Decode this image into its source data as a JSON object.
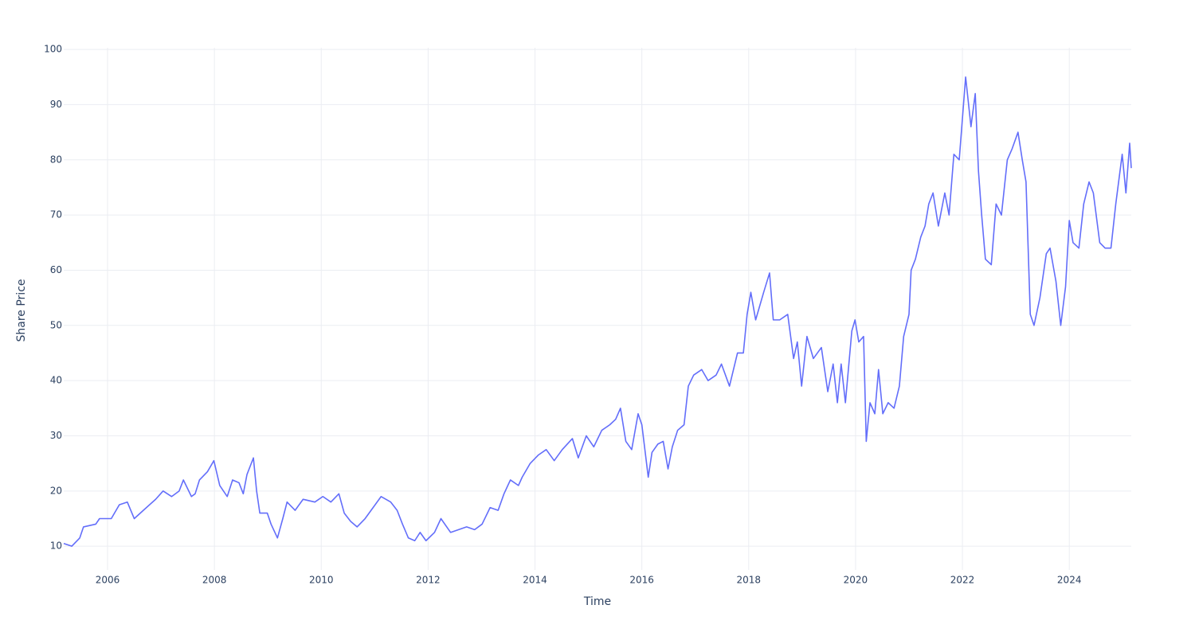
{
  "chart_data": {
    "type": "line",
    "x_label": "Time",
    "y_label": "Share Price",
    "xlim": [
      2005.18,
      2025.16
    ],
    "xticks": [
      2006,
      2008,
      2010,
      2012,
      2014,
      2016,
      2018,
      2020,
      2022,
      2024
    ],
    "ylim": [
      5.7,
      100.3
    ],
    "yticks": [
      10,
      20,
      30,
      40,
      50,
      60,
      70,
      80,
      90,
      100
    ],
    "grid": true,
    "series": [
      {
        "color": "#636efa",
        "x": [
          2005.18,
          2005.33,
          2005.48,
          2005.55,
          2005.78,
          2005.85,
          2006.07,
          2006.22,
          2006.37,
          2006.5,
          2006.67,
          2006.9,
          2007.04,
          2007.2,
          2007.34,
          2007.42,
          2007.57,
          2007.64,
          2007.72,
          2007.87,
          2007.99,
          2008.1,
          2008.24,
          2008.34,
          2008.46,
          2008.54,
          2008.61,
          2008.73,
          2008.79,
          2008.85,
          2008.99,
          2009.06,
          2009.18,
          2009.28,
          2009.36,
          2009.51,
          2009.66,
          2009.88,
          2010.03,
          2010.18,
          2010.33,
          2010.43,
          2010.55,
          2010.67,
          2010.82,
          2010.97,
          2011.12,
          2011.3,
          2011.42,
          2011.52,
          2011.63,
          2011.75,
          2011.85,
          2011.96,
          2012.12,
          2012.24,
          2012.42,
          2012.57,
          2012.72,
          2012.87,
          2013.01,
          2013.16,
          2013.31,
          2013.42,
          2013.54,
          2013.69,
          2013.76,
          2013.91,
          2014.06,
          2014.21,
          2014.36,
          2014.51,
          2014.7,
          2014.81,
          2014.96,
          2015.1,
          2015.25,
          2015.4,
          2015.51,
          2015.6,
          2015.7,
          2015.81,
          2015.93,
          2016.0,
          2016.12,
          2016.19,
          2016.3,
          2016.4,
          2016.49,
          2016.57,
          2016.67,
          2016.79,
          2016.87,
          2016.97,
          2017.12,
          2017.24,
          2017.39,
          2017.49,
          2017.64,
          2017.79,
          2017.9,
          2017.97,
          2018.04,
          2018.13,
          2018.28,
          2018.39,
          2018.46,
          2018.58,
          2018.73,
          2018.84,
          2018.91,
          2018.99,
          2019.09,
          2019.21,
          2019.36,
          2019.48,
          2019.58,
          2019.66,
          2019.73,
          2019.81,
          2019.93,
          2019.99,
          2020.06,
          2020.15,
          2020.2,
          2020.27,
          2020.36,
          2020.43,
          2020.51,
          2020.61,
          2020.72,
          2020.82,
          2020.9,
          2021.0,
          2021.04,
          2021.12,
          2021.22,
          2021.3,
          2021.37,
          2021.45,
          2021.55,
          2021.67,
          2021.75,
          2021.84,
          2021.94,
          2022.06,
          2022.16,
          2022.24,
          2022.3,
          2022.36,
          2022.43,
          2022.54,
          2022.63,
          2022.73,
          2022.84,
          2022.93,
          2023.04,
          2023.12,
          2023.19,
          2023.27,
          2023.34,
          2023.45,
          2023.57,
          2023.64,
          2023.75,
          2023.84,
          2023.93,
          2024.0,
          2024.07,
          2024.18,
          2024.27,
          2024.37,
          2024.45,
          2024.57,
          2024.67,
          2024.78,
          2024.87,
          2024.99,
          2025.06,
          2025.13,
          2025.16
        ],
        "values": [
          10.5,
          10,
          11.5,
          13.5,
          14,
          15,
          15,
          17.5,
          18,
          15,
          16.5,
          18.5,
          20,
          19,
          20,
          22,
          19,
          19.5,
          22,
          23.5,
          25.5,
          21,
          19,
          22,
          21.5,
          19.5,
          23,
          26,
          20,
          16,
          16,
          14,
          11.5,
          15,
          18,
          16.5,
          18.5,
          18,
          19,
          18,
          19.5,
          16,
          14.5,
          13.5,
          15,
          17,
          19,
          18,
          16.5,
          14,
          11.5,
          11,
          12.5,
          11,
          12.5,
          15,
          12.5,
          13,
          13.5,
          13,
          14,
          17,
          16.5,
          19.5,
          22,
          21,
          22.5,
          25,
          26.5,
          27.5,
          25.5,
          27.5,
          29.5,
          26,
          30,
          28,
          31,
          32,
          33,
          35,
          29,
          27.5,
          34,
          32,
          22.5,
          27,
          28.5,
          29,
          24,
          28,
          31,
          32,
          39,
          41,
          42,
          40,
          41,
          43,
          39,
          45,
          45,
          52,
          56,
          51,
          56,
          59.5,
          51,
          51,
          52,
          44,
          47,
          39,
          48,
          44,
          46,
          38,
          43,
          36,
          43,
          36,
          49,
          51,
          47,
          48,
          29,
          36,
          34,
          42,
          34,
          36,
          35,
          39,
          48,
          52,
          60,
          62,
          66,
          68,
          72,
          74,
          68,
          74,
          70,
          81,
          80,
          95,
          86,
          92,
          78,
          70,
          62,
          61,
          72,
          70,
          80,
          82,
          85,
          80,
          76,
          52,
          50,
          55,
          63,
          64,
          58,
          50,
          57,
          69,
          65,
          64,
          72,
          76,
          74,
          65,
          64,
          64,
          72,
          81,
          74,
          83,
          78.5
        ]
      }
    ]
  }
}
